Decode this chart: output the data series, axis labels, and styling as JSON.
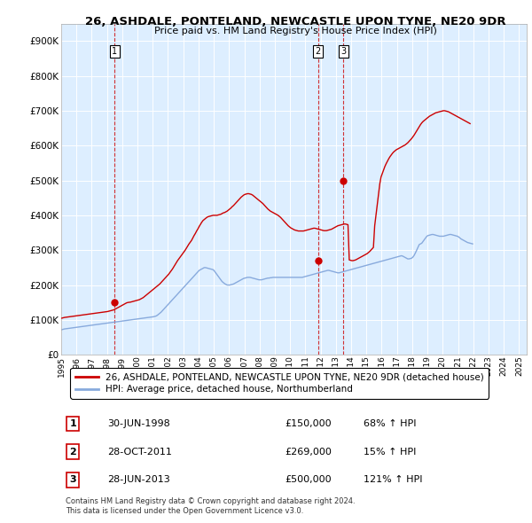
{
  "title": "26, ASHDALE, PONTELAND, NEWCASTLE UPON TYNE, NE20 9DR",
  "subtitle": "Price paid vs. HM Land Registry's House Price Index (HPI)",
  "ylabel_ticks": [
    "£0",
    "£100K",
    "£200K",
    "£300K",
    "£400K",
    "£500K",
    "£600K",
    "£700K",
    "£800K",
    "£900K"
  ],
  "ytick_values": [
    0,
    100000,
    200000,
    300000,
    400000,
    500000,
    600000,
    700000,
    800000,
    900000
  ],
  "ylim": [
    0,
    950000
  ],
  "xlim": [
    1995.0,
    2025.5
  ],
  "transactions": [
    {
      "year": 1998.5,
      "price": 150000,
      "label": "1"
    },
    {
      "year": 2011.83,
      "price": 269000,
      "label": "2"
    },
    {
      "year": 2013.5,
      "price": 500000,
      "label": "3"
    }
  ],
  "legend_entries": [
    "26, ASHDALE, PONTELAND, NEWCASTLE UPON TYNE, NE20 9DR (detached house)",
    "HPI: Average price, detached house, Northumberland"
  ],
  "table_rows": [
    [
      "1",
      "30-JUN-1998",
      "£150,000",
      "68% ↑ HPI"
    ],
    [
      "2",
      "28-OCT-2011",
      "£269,000",
      "15% ↑ HPI"
    ],
    [
      "3",
      "28-JUN-2013",
      "£500,000",
      "121% ↑ HPI"
    ]
  ],
  "footer": "Contains HM Land Registry data © Crown copyright and database right 2024.\nThis data is licensed under the Open Government Licence v3.0.",
  "price_line_color": "#cc0000",
  "hpi_line_color": "#88aadd",
  "dashed_line_color": "#cc0000",
  "chart_bg_color": "#ddeeff",
  "background_color": "#ffffff",
  "grid_color": "#ffffff",
  "label_box_color": "#cc0000",
  "hpi_data_monthly": {
    "start_year": 1995,
    "start_month": 1,
    "values": [
      72000,
      73000,
      74000,
      74500,
      75000,
      75500,
      76000,
      76500,
      77000,
      77500,
      78000,
      78500,
      79000,
      79500,
      80000,
      80500,
      81000,
      81500,
      82000,
      82500,
      83000,
      83500,
      84000,
      84500,
      85000,
      85500,
      86000,
      86500,
      87000,
      87500,
      88000,
      88500,
      89000,
      89500,
      90000,
      90500,
      91000,
      91500,
      92000,
      92500,
      93000,
      93500,
      94000,
      94500,
      95000,
      95500,
      96000,
      96500,
      97000,
      97500,
      98000,
      98500,
      99000,
      99500,
      100000,
      100500,
      101000,
      101500,
      102000,
      102500,
      103000,
      103500,
      104000,
      104500,
      105000,
      105500,
      106000,
      106500,
      107000,
      107500,
      108000,
      108500,
      109000,
      110000,
      111000,
      113000,
      116000,
      119000,
      122000,
      126000,
      130000,
      134000,
      138000,
      142000,
      146000,
      150000,
      154000,
      158000,
      162000,
      166000,
      170000,
      174000,
      178000,
      182000,
      186000,
      190000,
      194000,
      198000,
      202000,
      206000,
      210000,
      214000,
      218000,
      222000,
      226000,
      230000,
      234000,
      238000,
      242000,
      244000,
      246000,
      248000,
      250000,
      250000,
      249000,
      248000,
      247000,
      246000,
      245000,
      244000,
      240000,
      235000,
      230000,
      225000,
      220000,
      215000,
      210000,
      207000,
      204000,
      202000,
      200000,
      200000,
      200000,
      201000,
      202000,
      203000,
      205000,
      207000,
      209000,
      211000,
      213000,
      215000,
      217000,
      219000,
      220000,
      221000,
      222000,
      222000,
      222000,
      221000,
      220000,
      219000,
      218000,
      217000,
      216000,
      215000,
      215000,
      215000,
      216000,
      217000,
      218000,
      219000,
      220000,
      220000,
      221000,
      221000,
      222000,
      222000,
      222000,
      222000,
      222000,
      222000,
      222000,
      222000,
      222000,
      222000,
      222000,
      222000,
      222000,
      222000,
      222000,
      222000,
      222000,
      222000,
      222000,
      222000,
      222000,
      222000,
      222000,
      222000,
      223000,
      224000,
      225000,
      226000,
      227000,
      228000,
      229000,
      230000,
      231000,
      232000,
      233000,
      234000,
      235000,
      236000,
      237000,
      238000,
      239000,
      240000,
      241000,
      242000,
      242000,
      241000,
      240000,
      239000,
      238000,
      237000,
      236000,
      235000,
      235000,
      236000,
      237000,
      238000,
      239000,
      240000,
      241000,
      242000,
      243000,
      244000,
      245000,
      246000,
      247000,
      248000,
      249000,
      250000,
      251000,
      252000,
      253000,
      254000,
      255000,
      256000,
      257000,
      258000,
      259000,
      260000,
      261000,
      262000,
      263000,
      264000,
      265000,
      266000,
      267000,
      268000,
      269000,
      270000,
      271000,
      272000,
      273000,
      274000,
      275000,
      276000,
      277000,
      278000,
      279000,
      280000,
      281000,
      282000,
      283000,
      284000,
      283000,
      281000,
      279000,
      277000,
      275000,
      275000,
      276000,
      277000,
      280000,
      285000,
      292000,
      300000,
      308000,
      316000,
      318000,
      320000,
      325000,
      330000,
      335000,
      340000,
      342000,
      343000,
      344000,
      345000,
      345000,
      344000,
      343000,
      342000,
      341000,
      340000,
      340000,
      340000,
      340000,
      341000,
      342000,
      343000,
      344000,
      345000,
      345000,
      344000,
      343000,
      342000,
      341000,
      340000,
      338000,
      335000,
      332000,
      330000,
      328000,
      326000,
      324000,
      322000,
      321000,
      320000,
      319000,
      318000
    ]
  },
  "price_data_monthly": {
    "start_year": 1995,
    "start_month": 1,
    "values": [
      105000,
      106000,
      107000,
      107500,
      108000,
      108500,
      109000,
      109500,
      110000,
      110500,
      111000,
      111500,
      112000,
      112500,
      113000,
      113500,
      114000,
      114500,
      115000,
      115500,
      116000,
      116500,
      117000,
      117500,
      118000,
      118500,
      119000,
      119500,
      120000,
      120500,
      121000,
      121500,
      122000,
      122500,
      123000,
      123500,
      124000,
      125000,
      126000,
      127000,
      128000,
      129000,
      131000,
      133000,
      135000,
      137000,
      139000,
      141000,
      143000,
      145000,
      147000,
      149000,
      150000,
      150500,
      151000,
      152000,
      153000,
      154000,
      155000,
      156000,
      157000,
      158000,
      160000,
      162000,
      164000,
      167000,
      170000,
      173000,
      176000,
      179000,
      182000,
      185000,
      188000,
      191000,
      194000,
      197000,
      200000,
      203000,
      207000,
      211000,
      215000,
      219000,
      223000,
      227000,
      231000,
      236000,
      241000,
      246000,
      252000,
      258000,
      264000,
      270000,
      275000,
      280000,
      285000,
      290000,
      295000,
      300000,
      306000,
      312000,
      318000,
      323000,
      328000,
      335000,
      342000,
      348000,
      355000,
      361000,
      368000,
      374000,
      380000,
      385000,
      388000,
      391000,
      394000,
      396000,
      397000,
      398000,
      399000,
      400000,
      400000,
      400000,
      400000,
      401000,
      402000,
      403000,
      405000,
      407000,
      408000,
      410000,
      412000,
      415000,
      418000,
      421000,
      425000,
      428000,
      432000,
      436000,
      440000,
      444000,
      448000,
      452000,
      455000,
      458000,
      460000,
      461000,
      462000,
      462000,
      461000,
      460000,
      458000,
      455000,
      452000,
      449000,
      446000,
      443000,
      440000,
      437000,
      434000,
      430000,
      426000,
      422000,
      418000,
      415000,
      412000,
      410000,
      408000,
      406000,
      404000,
      402000,
      400000,
      397000,
      394000,
      390000,
      386000,
      382000,
      378000,
      374000,
      370000,
      367000,
      364000,
      362000,
      360000,
      358000,
      357000,
      356000,
      355000,
      355000,
      355000,
      355000,
      355000,
      356000,
      357000,
      358000,
      359000,
      360000,
      361000,
      362000,
      363000,
      363000,
      362000,
      361000,
      360000,
      359000,
      358000,
      357000,
      356000,
      356000,
      356000,
      357000,
      358000,
      359000,
      360000,
      362000,
      364000,
      366000,
      368000,
      370000,
      371000,
      372000,
      373000,
      374000,
      375000,
      375000,
      374000,
      373000,
      272000,
      271000,
      270000,
      270000,
      271000,
      272000,
      274000,
      276000,
      278000,
      280000,
      282000,
      284000,
      286000,
      288000,
      290000,
      293000,
      296000,
      300000,
      304000,
      308000,
      370000,
      400000,
      430000,
      460000,
      490000,
      510000,
      520000,
      530000,
      540000,
      548000,
      555000,
      562000,
      568000,
      573000,
      578000,
      582000,
      585000,
      588000,
      590000,
      592000,
      594000,
      596000,
      598000,
      600000,
      602000,
      605000,
      608000,
      612000,
      616000,
      620000,
      625000,
      630000,
      636000,
      642000,
      648000,
      654000,
      660000,
      665000,
      669000,
      672000,
      675000,
      678000,
      681000,
      684000,
      686000,
      688000,
      690000,
      692000,
      694000,
      695000,
      696000,
      697000,
      698000,
      699000,
      700000,
      700000,
      699000,
      698000,
      697000,
      695000,
      693000,
      691000,
      689000,
      687000,
      685000,
      683000,
      681000,
      679000,
      677000,
      675000,
      673000,
      671000,
      669000,
      667000,
      665000,
      663000
    ]
  }
}
